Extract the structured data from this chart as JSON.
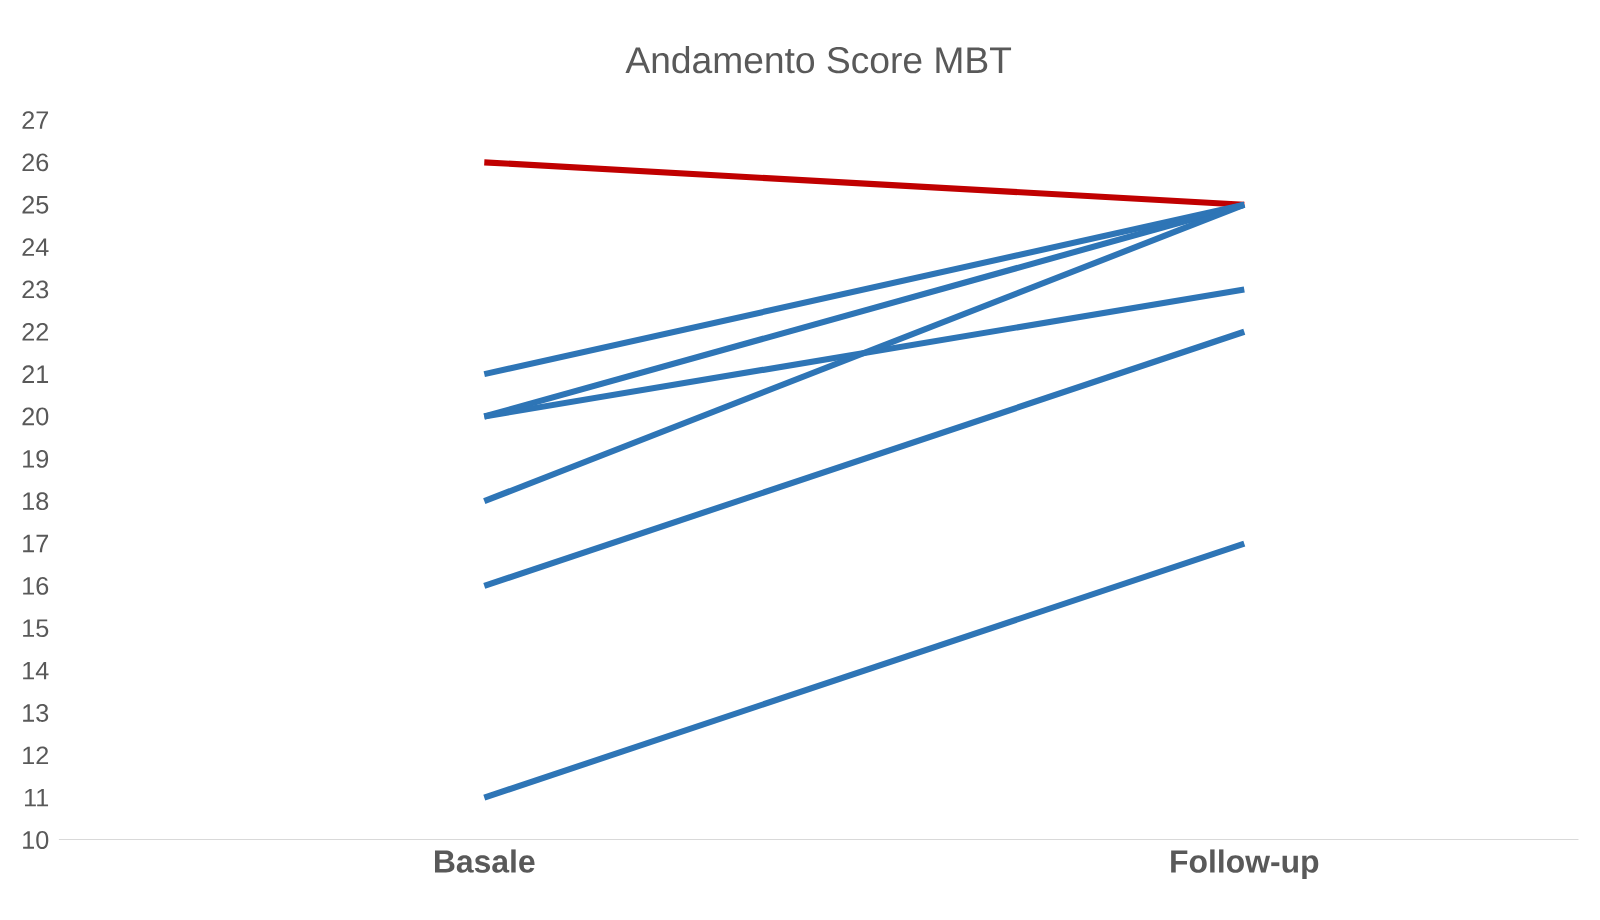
{
  "chart_data": {
    "type": "line",
    "title": "Andamento Score MBT",
    "categories": [
      "Basale",
      "Follow-up"
    ],
    "series": [
      {
        "color": "#c00000",
        "values": [
          26,
          25
        ]
      },
      {
        "color": "#2e75b6",
        "values": [
          21,
          25
        ]
      },
      {
        "color": "#2e75b6",
        "values": [
          20,
          25
        ]
      },
      {
        "color": "#2e75b6",
        "values": [
          20,
          23
        ]
      },
      {
        "color": "#2e75b6",
        "values": [
          18,
          25
        ]
      },
      {
        "color": "#2e75b6",
        "values": [
          16,
          22
        ]
      },
      {
        "color": "#2e75b6",
        "values": [
          11,
          17
        ]
      }
    ],
    "ylim": [
      10,
      27
    ],
    "yticks": [
      10,
      11,
      12,
      13,
      14,
      15,
      16,
      17,
      18,
      19,
      20,
      21,
      22,
      23,
      24,
      25,
      26,
      27
    ],
    "grid": false,
    "marker": "none",
    "line_style": "solid"
  }
}
